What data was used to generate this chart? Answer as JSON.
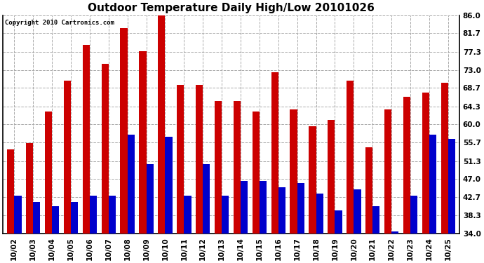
{
  "title": "Outdoor Temperature Daily High/Low 20101026",
  "copyright": "Copyright 2010 Cartronics.com",
  "dates": [
    "10/02",
    "10/03",
    "10/04",
    "10/05",
    "10/06",
    "10/07",
    "10/08",
    "10/09",
    "10/10",
    "10/11",
    "10/12",
    "10/13",
    "10/14",
    "10/15",
    "10/16",
    "10/17",
    "10/18",
    "10/19",
    "10/20",
    "10/21",
    "10/22",
    "10/23",
    "10/24",
    "10/25"
  ],
  "highs": [
    54.0,
    55.5,
    63.0,
    70.5,
    79.0,
    74.5,
    83.0,
    77.5,
    86.0,
    69.5,
    69.5,
    65.5,
    65.5,
    63.0,
    72.5,
    63.5,
    59.5,
    61.0,
    70.5,
    54.5,
    63.5,
    66.5,
    67.5,
    70.0
  ],
  "lows": [
    43.0,
    41.5,
    40.5,
    41.5,
    43.0,
    43.0,
    57.5,
    50.5,
    57.0,
    43.0,
    50.5,
    43.0,
    46.5,
    46.5,
    45.0,
    46.0,
    43.5,
    39.5,
    44.5,
    40.5,
    34.5,
    43.0,
    57.5,
    56.5
  ],
  "high_color": "#cc0000",
  "low_color": "#0000cc",
  "background_color": "#ffffff",
  "grid_color": "#aaaaaa",
  "yticks": [
    34.0,
    38.3,
    42.7,
    47.0,
    51.3,
    55.7,
    60.0,
    64.3,
    68.7,
    73.0,
    77.3,
    81.7,
    86.0
  ],
  "ymin": 34.0,
  "ymax": 86.0,
  "bar_width": 0.38
}
